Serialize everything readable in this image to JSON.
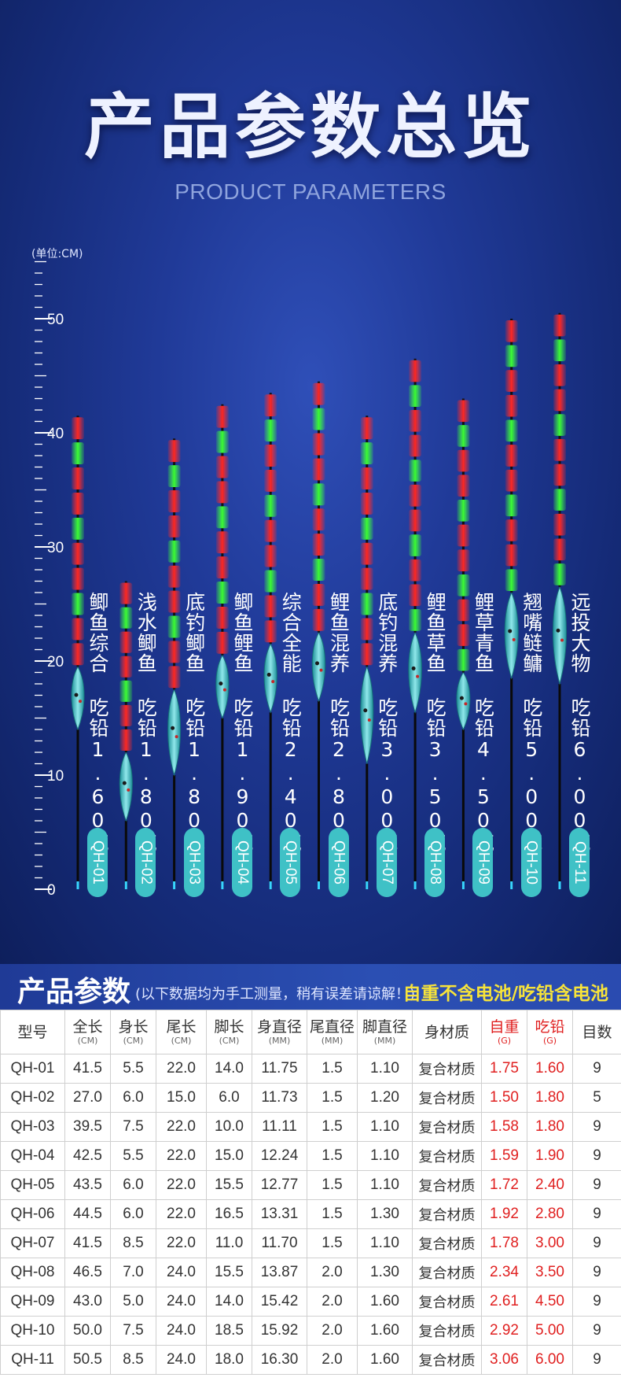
{
  "title": "产品参数总览",
  "subtitle": "PRODUCT PARAMETERS",
  "ruler": {
    "unit_label": "(单位:CM)",
    "labels": [
      "0",
      "10",
      "20",
      "30",
      "40",
      "50"
    ],
    "max": 55
  },
  "floats": [
    {
      "model": "QH-01",
      "name": "鲫鱼综合",
      "lead": "吃铅1.60克",
      "length": 41.5
    },
    {
      "model": "QH-02",
      "name": "浅水鲫鱼",
      "lead": "吃铅1.80克",
      "length": 27.0
    },
    {
      "model": "QH-03",
      "name": "底钓鲫鱼",
      "lead": "吃铅1.80克",
      "length": 39.5
    },
    {
      "model": "QH-04",
      "name": "鲫鱼鲤鱼",
      "lead": "吃铅1.90克",
      "length": 42.5
    },
    {
      "model": "QH-05",
      "name": "综合全能",
      "lead": "吃铅2.40克",
      "length": 43.5
    },
    {
      "model": "QH-06",
      "name": "鲤鱼混养",
      "lead": "吃铅2.80克",
      "length": 44.5
    },
    {
      "model": "QH-07",
      "name": "底钓混养",
      "lead": "吃铅3.00克",
      "length": 41.5
    },
    {
      "model": "QH-08",
      "name": "鲤鱼草鱼",
      "lead": "吃铅3.50克",
      "length": 46.5
    },
    {
      "model": "QH-09",
      "name": "鲤草青鱼",
      "lead": "吃铅4.50克",
      "length": 43.0
    },
    {
      "model": "QH-10",
      "name": "翘嘴鲢鳙",
      "lead": "吃铅5.00克",
      "length": 50.0
    },
    {
      "model": "QH-11",
      "name": "远投大物",
      "lead": "吃铅6.00克",
      "length": 50.5
    }
  ],
  "colors": {
    "red": "#ff2a2a",
    "green": "#3cff3c",
    "body": "#3fc1c6",
    "accent_red": "#e02020",
    "note_yellow": "#f7e33a"
  },
  "params": {
    "title": "产品参数",
    "note": "(以下数据均为手工测量，稍有误差请谅解！)",
    "battery_note": "自重不含电池/吃铅含电池",
    "headers": [
      {
        "label": "型号",
        "sub": ""
      },
      {
        "label": "全长",
        "sub": "(CM)"
      },
      {
        "label": "身长",
        "sub": "(CM)"
      },
      {
        "label": "尾长",
        "sub": "(CM)"
      },
      {
        "label": "脚长",
        "sub": "(CM)"
      },
      {
        "label": "身直径",
        "sub": "(MM)"
      },
      {
        "label": "尾直径",
        "sub": "(MM)"
      },
      {
        "label": "脚直径",
        "sub": "(MM)"
      },
      {
        "label": "身材质",
        "sub": ""
      },
      {
        "label": "自重",
        "sub": "(G)"
      },
      {
        "label": "吃铅",
        "sub": "(G)"
      },
      {
        "label": "目数",
        "sub": ""
      }
    ],
    "rows": [
      [
        "QH-01",
        "41.5",
        "5.5",
        "22.0",
        "14.0",
        "11.75",
        "1.5",
        "1.10",
        "复合材质",
        "1.75",
        "1.60",
        "9"
      ],
      [
        "QH-02",
        "27.0",
        "6.0",
        "15.0",
        "6.0",
        "11.73",
        "1.5",
        "1.20",
        "复合材质",
        "1.50",
        "1.80",
        "5"
      ],
      [
        "QH-03",
        "39.5",
        "7.5",
        "22.0",
        "10.0",
        "11.11",
        "1.5",
        "1.10",
        "复合材质",
        "1.58",
        "1.80",
        "9"
      ],
      [
        "QH-04",
        "42.5",
        "5.5",
        "22.0",
        "15.0",
        "12.24",
        "1.5",
        "1.10",
        "复合材质",
        "1.59",
        "1.90",
        "9"
      ],
      [
        "QH-05",
        "43.5",
        "6.0",
        "22.0",
        "15.5",
        "12.77",
        "1.5",
        "1.10",
        "复合材质",
        "1.72",
        "2.40",
        "9"
      ],
      [
        "QH-06",
        "44.5",
        "6.0",
        "22.0",
        "16.5",
        "13.31",
        "1.5",
        "1.30",
        "复合材质",
        "1.92",
        "2.80",
        "9"
      ],
      [
        "QH-07",
        "41.5",
        "8.5",
        "22.0",
        "11.0",
        "11.70",
        "1.5",
        "1.10",
        "复合材质",
        "1.78",
        "3.00",
        "9"
      ],
      [
        "QH-08",
        "46.5",
        "7.0",
        "24.0",
        "15.5",
        "13.87",
        "2.0",
        "1.30",
        "复合材质",
        "2.34",
        "3.50",
        "9"
      ],
      [
        "QH-09",
        "43.0",
        "5.0",
        "24.0",
        "14.0",
        "15.42",
        "2.0",
        "1.60",
        "复合材质",
        "2.61",
        "4.50",
        "9"
      ],
      [
        "QH-10",
        "50.0",
        "7.5",
        "24.0",
        "18.5",
        "15.92",
        "2.0",
        "1.60",
        "复合材质",
        "2.92",
        "5.00",
        "9"
      ],
      [
        "QH-11",
        "50.5",
        "8.5",
        "24.0",
        "18.0",
        "16.30",
        "2.0",
        "1.60",
        "复合材质",
        "3.06",
        "6.00",
        "9"
      ]
    ]
  }
}
